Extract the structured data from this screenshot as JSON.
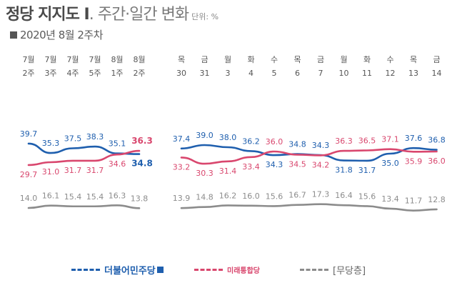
{
  "title": {
    "main": "정당 지지도 Ⅰ",
    "rest": ". 주간·일간 변화",
    "unit": "단위: %"
  },
  "subtitle": "2020년 8월 2주차",
  "chart_data": [
    {
      "type": "line",
      "title": "",
      "x": [
        "7월 2주",
        "7월 3주",
        "7월 4주",
        "7월 5주",
        "8월 1주",
        "8월 2주"
      ],
      "x_top": [
        "7월",
        "7월",
        "7월",
        "7월",
        "8월",
        "8월"
      ],
      "x_bottom": [
        "2주",
        "3주",
        "4주",
        "5주",
        "1주",
        "2주"
      ],
      "series": [
        {
          "name": "더불어민주당",
          "values": [
            39.7,
            35.3,
            37.5,
            38.3,
            35.1,
            34.8
          ],
          "color": "#1f5fae"
        },
        {
          "name": "미래통합당",
          "values": [
            29.7,
            31.0,
            31.7,
            31.7,
            34.6,
            36.3
          ],
          "color": "#d9476e"
        },
        {
          "name": "무당층",
          "values": [
            14.0,
            16.1,
            15.4,
            15.4,
            16.3,
            13.8
          ],
          "color": "#8c8c8c"
        }
      ]
    },
    {
      "type": "line",
      "title": "",
      "x": [
        "목 30",
        "금 31",
        "월 3",
        "화 4",
        "수 5",
        "목 6",
        "금 7",
        "월 10",
        "화 11",
        "수 12",
        "목 13",
        "금 14"
      ],
      "x_top": [
        "목",
        "금",
        "월",
        "화",
        "수",
        "목",
        "금",
        "월",
        "화",
        "수",
        "목",
        "금"
      ],
      "x_bottom": [
        "30",
        "31",
        "3",
        "4",
        "5",
        "6",
        "7",
        "10",
        "11",
        "12",
        "13",
        "14"
      ],
      "series": [
        {
          "name": "더불어민주당",
          "values": [
            37.4,
            39.0,
            38.0,
            36.2,
            34.3,
            34.8,
            34.3,
            31.8,
            31.7,
            35.0,
            37.6,
            36.8
          ],
          "color": "#1f5fae"
        },
        {
          "name": "미래통합당",
          "values": [
            33.2,
            30.3,
            31.4,
            33.4,
            36.0,
            34.5,
            34.2,
            36.3,
            36.5,
            37.1,
            35.9,
            36.0
          ],
          "color": "#d9476e"
        },
        {
          "name": "무당층",
          "values": [
            13.9,
            14.8,
            16.2,
            16.0,
            15.6,
            16.7,
            17.3,
            16.4,
            15.6,
            13.4,
            11.7,
            12.8
          ],
          "color": "#8c8c8c"
        }
      ]
    }
  ],
  "legend": [
    {
      "label": "더불어민주당",
      "color": "#1f5fae"
    },
    {
      "label": "미래통합당",
      "color": "#d9476e"
    },
    {
      "label": "[무당층]",
      "color": "#8c8c8c"
    }
  ]
}
